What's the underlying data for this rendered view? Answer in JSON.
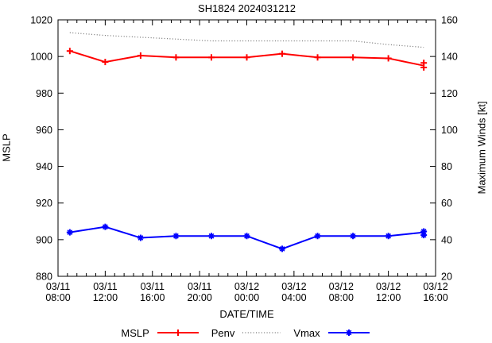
{
  "title": "SH1824 2024031212",
  "axes": {
    "left_label": "MSLP",
    "right_label": "Maximum Winds [kt]",
    "x_label": "DATE/TIME",
    "left_ticks": [
      880,
      900,
      920,
      940,
      960,
      980,
      1000,
      1020
    ],
    "right_ticks": [
      20,
      40,
      60,
      80,
      100,
      120,
      140,
      160
    ],
    "x_tick_labels": [
      [
        "03/11",
        "08:00"
      ],
      [
        "03/11",
        "12:00"
      ],
      [
        "03/11",
        "16:00"
      ],
      [
        "03/11",
        "20:00"
      ],
      [
        "03/12",
        "00:00"
      ],
      [
        "03/12",
        "04:00"
      ],
      [
        "03/12",
        "08:00"
      ],
      [
        "03/12",
        "12:00"
      ],
      [
        "03/12",
        "16:00"
      ]
    ],
    "x_major_step_hours": 4,
    "x_minor_per_major": 5
  },
  "chart_data": {
    "type": "line",
    "title": "SH1824 2024031212",
    "xlabel": "DATE/TIME",
    "ylabel_left": "MSLP",
    "ylabel_right": "Maximum Winds [kt]",
    "ylim_left": [
      880,
      1020
    ],
    "ylim_right": [
      20,
      160
    ],
    "x_range_hours": [
      0,
      32
    ],
    "x_axis_start": "03/11 08:00",
    "x_axis_end": "03/12 16:00",
    "grid": false,
    "legend_position": "bottom-center",
    "x_hours_after_0311_0800": [
      1,
      4,
      7,
      10,
      13,
      16,
      19,
      22,
      25,
      28,
      31
    ],
    "series": [
      {
        "name": "MSLP",
        "axis": "left",
        "color": "#ff0000",
        "line": "solid",
        "marker": "plus",
        "values": [
          1003,
          997,
          1000.5,
          999.5,
          999.5,
          999.5,
          1001.5,
          999.5,
          999.5,
          999,
          995
        ],
        "last_point_double_marker": [
          996.5,
          994
        ]
      },
      {
        "name": "Penv",
        "axis": "left",
        "color": "#707070",
        "line": "dotted",
        "marker": "none",
        "values": [
          1013,
          1011.5,
          1010.5,
          1009.5,
          1008.5,
          1008.5,
          1008.5,
          1008.5,
          1008.5,
          1006.5,
          1005
        ]
      },
      {
        "name": "Vmax",
        "axis": "right",
        "color": "#0000ff",
        "line": "solid",
        "marker": "star",
        "values": [
          44,
          47,
          41,
          42,
          42,
          42,
          35,
          42,
          42,
          42,
          44
        ],
        "last_point_double_marker": [
          44.5,
          42.5
        ]
      }
    ]
  }
}
